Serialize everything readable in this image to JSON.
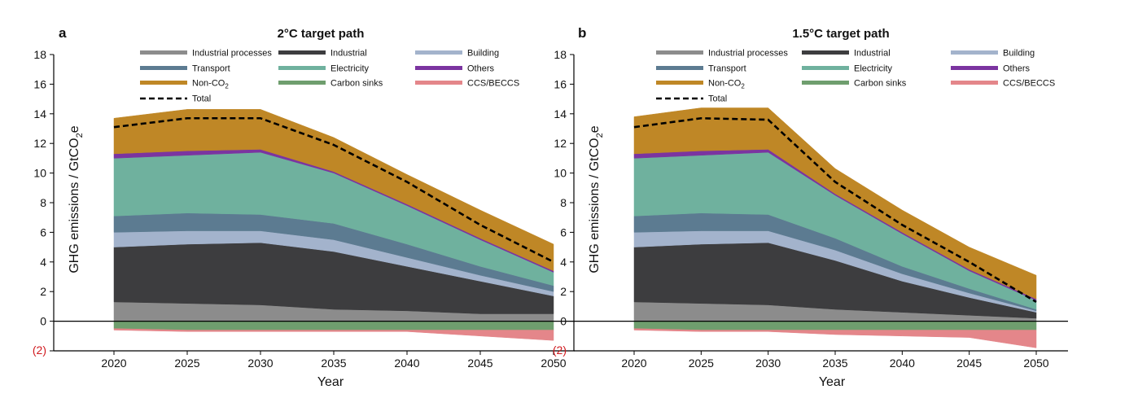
{
  "figure": {
    "alt": "Two stacked area charts of greenhouse gas emissions pathways"
  },
  "chart_data": [
    {
      "type": "area",
      "panel_letter": "a",
      "title": "2°C target path",
      "xlabel": "Year",
      "ylabel_main": "GHG emissions / GtCO",
      "ylabel_sub": "2",
      "ylabel_tail": "e",
      "x": [
        2020,
        2025,
        2030,
        2035,
        2040,
        2045,
        2050
      ],
      "xtick_labels": [
        "2020",
        "2025",
        "2030",
        "2035",
        "2040",
        "2045",
        "2050"
      ],
      "ylim": [
        -2,
        18
      ],
      "yticks": [
        0,
        2,
        4,
        6,
        8,
        10,
        12,
        14,
        16,
        18
      ],
      "ytick_labels": [
        "0",
        "2",
        "4",
        "6",
        "8",
        "10",
        "12",
        "14",
        "16",
        "18"
      ],
      "neg_tick_label": "(2)",
      "grid": false,
      "legend": "top",
      "positive_series": [
        {
          "name": "Industrial processes",
          "color": "#8c8c8c",
          "values": [
            1.3,
            1.2,
            1.1,
            0.8,
            0.7,
            0.5,
            0.5
          ]
        },
        {
          "name": "Industrial",
          "color": "#3d3d3f",
          "values": [
            3.7,
            4.0,
            4.2,
            3.9,
            3.0,
            2.2,
            1.2
          ]
        },
        {
          "name": "Building",
          "color": "#a3b3cc",
          "values": [
            1.0,
            0.9,
            0.8,
            0.8,
            0.6,
            0.4,
            0.3
          ]
        },
        {
          "name": "Transport",
          "color": "#5c7b91",
          "values": [
            1.1,
            1.2,
            1.1,
            1.1,
            0.9,
            0.6,
            0.4
          ]
        },
        {
          "name": "Electricity",
          "color": "#6fb19e",
          "values": [
            3.9,
            3.9,
            4.2,
            3.4,
            2.6,
            1.8,
            0.9
          ]
        },
        {
          "name": "Others",
          "color": "#7b34a0",
          "values": [
            0.3,
            0.3,
            0.2,
            0.1,
            0.1,
            0.1,
            0.1
          ]
        },
        {
          "name": "Non-CO",
          "sub": "2",
          "color": "#bf8726",
          "values": [
            2.4,
            2.8,
            2.7,
            2.3,
            2.0,
            1.9,
            1.8
          ]
        }
      ],
      "negative_series": [
        {
          "name": "Carbon sinks",
          "color": "#6f9e6e",
          "values": [
            -0.5,
            -0.6,
            -0.6,
            -0.6,
            -0.6,
            -0.6,
            -0.6
          ]
        },
        {
          "name": "CCS/BECCS",
          "color": "#e4868a",
          "values": [
            -0.1,
            -0.1,
            -0.1,
            -0.1,
            -0.1,
            -0.4,
            -0.7
          ]
        }
      ],
      "total": {
        "name": "Total",
        "values": [
          13.1,
          13.7,
          13.7,
          11.9,
          9.4,
          6.5,
          4.0
        ]
      }
    },
    {
      "type": "area",
      "panel_letter": "b",
      "title": "1.5°C target path",
      "xlabel": "Year",
      "ylabel_main": "GHG emissions / GtCO",
      "ylabel_sub": "2",
      "ylabel_tail": "e",
      "x": [
        2020,
        2025,
        2030,
        2035,
        2040,
        2045,
        2050
      ],
      "xtick_labels": [
        "2020",
        "2025",
        "2030",
        "2035",
        "2040",
        "2045",
        "2050"
      ],
      "ylim": [
        -2,
        18
      ],
      "yticks": [
        0,
        2,
        4,
        6,
        8,
        10,
        12,
        14,
        16,
        18
      ],
      "ytick_labels": [
        "0",
        "2",
        "4",
        "6",
        "8",
        "10",
        "12",
        "14",
        "16",
        "18"
      ],
      "neg_tick_label": "(2)",
      "grid": false,
      "legend": "top",
      "positive_series": [
        {
          "name": "Industrial processes",
          "color": "#8c8c8c",
          "values": [
            1.3,
            1.2,
            1.1,
            0.8,
            0.6,
            0.4,
            0.2
          ]
        },
        {
          "name": "Industrial",
          "color": "#3d3d3f",
          "values": [
            3.7,
            4.0,
            4.2,
            3.3,
            2.1,
            1.2,
            0.4
          ]
        },
        {
          "name": "Building",
          "color": "#a3b3cc",
          "values": [
            1.0,
            0.9,
            0.8,
            0.7,
            0.5,
            0.3,
            0.1
          ]
        },
        {
          "name": "Transport",
          "color": "#5c7b91",
          "values": [
            1.1,
            1.2,
            1.1,
            0.8,
            0.5,
            0.3,
            0.1
          ]
        },
        {
          "name": "Electricity",
          "color": "#6fb19e",
          "values": [
            3.9,
            3.9,
            4.2,
            2.9,
            2.2,
            1.2,
            0.6
          ]
        },
        {
          "name": "Others",
          "color": "#7b34a0",
          "values": [
            0.3,
            0.3,
            0.2,
            0.1,
            0.1,
            0.1,
            0.1
          ]
        },
        {
          "name": "Non-CO",
          "sub": "2",
          "color": "#bf8726",
          "values": [
            2.5,
            2.9,
            2.8,
            1.7,
            1.5,
            1.5,
            1.6
          ]
        }
      ],
      "negative_series": [
        {
          "name": "Carbon sinks",
          "color": "#6f9e6e",
          "values": [
            -0.5,
            -0.6,
            -0.6,
            -0.6,
            -0.6,
            -0.6,
            -0.6
          ]
        },
        {
          "name": "CCS/BECCS",
          "color": "#e4868a",
          "values": [
            -0.1,
            -0.1,
            -0.1,
            -0.3,
            -0.4,
            -0.5,
            -1.2
          ]
        }
      ],
      "total": {
        "name": "Total",
        "values": [
          13.1,
          13.7,
          13.6,
          9.4,
          6.5,
          4.0,
          1.3
        ]
      }
    }
  ],
  "legend_order": [
    "Industrial processes",
    "Industrial",
    "Building",
    "Transport",
    "Electricity",
    "Others",
    "Non-CO",
    "Carbon sinks",
    "CCS/BECCS",
    "Total"
  ]
}
